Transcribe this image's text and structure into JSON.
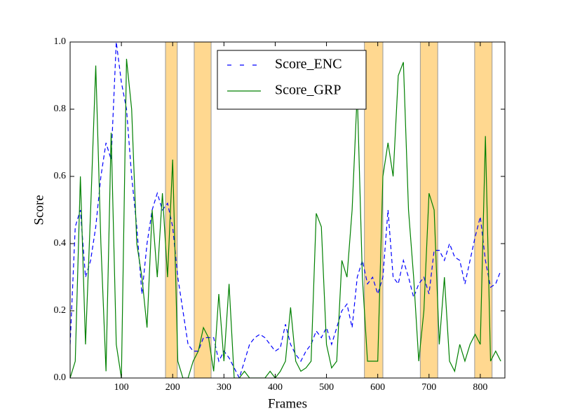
{
  "chart_data": {
    "type": "line",
    "x_label": "Frames",
    "y_label": "Score",
    "x": [
      0,
      10,
      20,
      30,
      40,
      50,
      60,
      70,
      80,
      90,
      100,
      110,
      120,
      130,
      140,
      150,
      160,
      170,
      180,
      190,
      200,
      210,
      220,
      230,
      240,
      250,
      260,
      270,
      280,
      290,
      300,
      310,
      320,
      330,
      340,
      350,
      360,
      370,
      380,
      390,
      400,
      410,
      420,
      430,
      440,
      450,
      460,
      470,
      480,
      490,
      500,
      510,
      520,
      530,
      540,
      550,
      560,
      570,
      580,
      590,
      600,
      610,
      620,
      630,
      640,
      650,
      660,
      670,
      680,
      690,
      700,
      710,
      720,
      730,
      740,
      750,
      760,
      770,
      780,
      790,
      800,
      810,
      820,
      830,
      840
    ],
    "series": [
      {
        "name": "Score_ENC",
        "color": "#0000ff",
        "dash": true,
        "values": [
          0.1,
          0.45,
          0.5,
          0.3,
          0.35,
          0.45,
          0.6,
          0.7,
          0.65,
          1.0,
          0.88,
          0.8,
          0.6,
          0.45,
          0.25,
          0.4,
          0.5,
          0.55,
          0.5,
          0.52,
          0.45,
          0.3,
          0.2,
          0.1,
          0.08,
          0.08,
          0.12,
          0.12,
          0.12,
          0.05,
          0.08,
          0.06,
          0.03,
          0.0,
          0.05,
          0.1,
          0.12,
          0.13,
          0.12,
          0.1,
          0.08,
          0.09,
          0.16,
          0.1,
          0.07,
          0.05,
          0.08,
          0.1,
          0.14,
          0.12,
          0.15,
          0.1,
          0.15,
          0.2,
          0.22,
          0.15,
          0.3,
          0.35,
          0.28,
          0.3,
          0.25,
          0.3,
          0.5,
          0.3,
          0.28,
          0.35,
          0.3,
          0.24,
          0.28,
          0.3,
          0.25,
          0.38,
          0.38,
          0.35,
          0.4,
          0.36,
          0.35,
          0.28,
          0.35,
          0.42,
          0.48,
          0.35,
          0.27,
          0.28,
          0.32
        ]
      },
      {
        "name": "Score_GRP",
        "color": "#008000",
        "dash": false,
        "values": [
          0.0,
          0.05,
          0.6,
          0.1,
          0.5,
          0.93,
          0.4,
          0.02,
          0.73,
          0.1,
          0.0,
          0.95,
          0.8,
          0.4,
          0.3,
          0.15,
          0.5,
          0.3,
          0.55,
          0.3,
          0.65,
          0.05,
          0.0,
          0.0,
          0.05,
          0.08,
          0.15,
          0.12,
          0.02,
          0.25,
          0.05,
          0.28,
          0.0,
          0.0,
          0.02,
          0.0,
          0.0,
          0.0,
          0.0,
          0.02,
          0.0,
          0.02,
          0.05,
          0.21,
          0.05,
          0.02,
          0.03,
          0.05,
          0.49,
          0.45,
          0.1,
          0.03,
          0.05,
          0.35,
          0.3,
          0.5,
          0.85,
          0.3,
          0.05,
          0.05,
          0.05,
          0.6,
          0.7,
          0.6,
          0.9,
          0.94,
          0.5,
          0.3,
          0.05,
          0.2,
          0.55,
          0.5,
          0.1,
          0.3,
          0.05,
          0.02,
          0.1,
          0.05,
          0.1,
          0.13,
          0.1,
          0.72,
          0.05,
          0.08,
          0.05
        ]
      }
    ],
    "spans": [
      [
        186,
        209
      ],
      [
        242,
        275
      ],
      [
        574,
        610
      ],
      [
        683,
        717
      ],
      [
        789,
        823
      ]
    ],
    "span_color": "#ffd890",
    "xlim": [
      0,
      848
    ],
    "xticks": [
      100,
      200,
      300,
      400,
      500,
      600,
      700,
      800
    ],
    "ylim": [
      0,
      1
    ],
    "yticks": [
      {
        "value": 0,
        "label": "0.0"
      },
      {
        "value": 0.2,
        "label": "0.2"
      },
      {
        "value": 0.4,
        "label": "0.4"
      },
      {
        "value": 0.6,
        "label": "0.6"
      },
      {
        "value": 0.8,
        "label": "0.8"
      },
      {
        "value": 1,
        "label": "1.0"
      }
    ],
    "legend": "upper center"
  }
}
